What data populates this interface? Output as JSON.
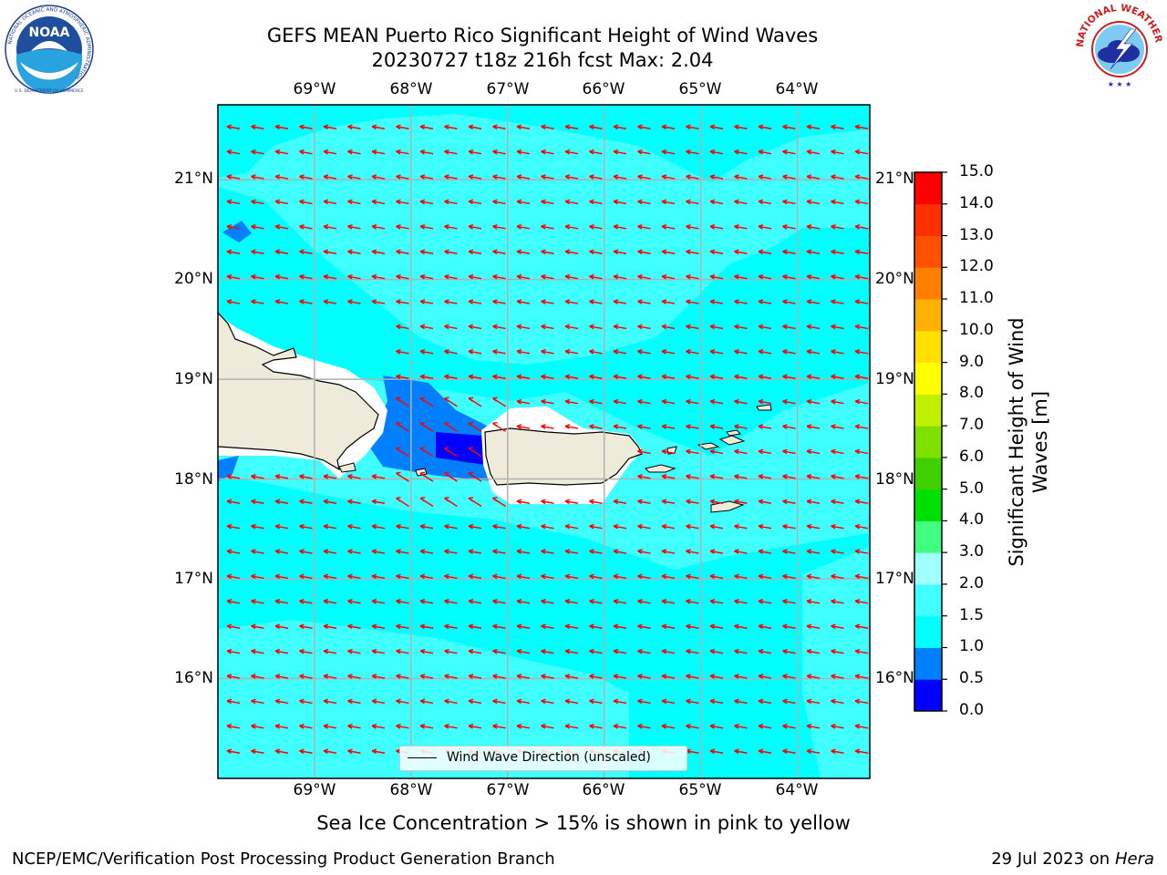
{
  "title_line1": "GEFS MEAN Puerto Rico Significant Height of Wind Waves",
  "title_line2": "20230727 t18z 216h fcst   Max: 2.04",
  "logos": {
    "noaa_icon": "noaa-logo",
    "noaa_text": "NOAA",
    "noaa_ring_text": "NATIONAL OCEANIC AND ATMOSPHERIC ADMINISTRATION",
    "noaa_ring_bottom": "U.S. DEPARTMENT OF COMMERCE",
    "nws_icon": "nws-logo",
    "nws_ring_text": "NATIONAL WEATHER SERVICE"
  },
  "map": {
    "lon_labels": [
      "69°W",
      "68°W",
      "67°W",
      "66°W",
      "65°W",
      "64°W"
    ],
    "lat_labels": [
      "21°N",
      "20°N",
      "19°N",
      "18°N",
      "17°N",
      "16°N"
    ],
    "lon_values": [
      -69,
      -68,
      -67,
      -66,
      -65,
      -64
    ],
    "lat_values": [
      21,
      20,
      19,
      18,
      17,
      16
    ],
    "lon_range": [
      -70.0,
      -63.25
    ],
    "lat_range": [
      15.0,
      21.75
    ],
    "ocean_color": "#00ffff",
    "land_color": "#eeebdb",
    "arrow_color": "#ff0000",
    "wind_direction": "from east, pointing west-northwest"
  },
  "legend": {
    "label": "Wind Wave Direction (unscaled)"
  },
  "colorbar": {
    "title": "Significant Height of Wind Waves [m]",
    "ticks": [
      "0.0",
      "0.5",
      "1.0",
      "1.5",
      "2.0",
      "3.0",
      "4.0",
      "5.0",
      "6.0",
      "7.0",
      "8.0",
      "9.0",
      "10.0",
      "11.0",
      "12.0",
      "13.0",
      "14.0",
      "15.0"
    ],
    "colors": [
      "#0000ff",
      "#0080ff",
      "#00ffff",
      "#40ffff",
      "#a0ffff",
      "#40ff80",
      "#00e000",
      "#40d000",
      "#80e000",
      "#c0f000",
      "#ffff00",
      "#ffe000",
      "#ffb000",
      "#ff8000",
      "#ff5000",
      "#ff3000",
      "#ff0000"
    ]
  },
  "sea_ice_note": "Sea Ice Concentration > 15% is shown in pink to yellow",
  "footer_left": "NCEP/EMC/Verification Post Processing Product Generation Branch",
  "footer_right_prefix": "29 Jul 2023 on ",
  "footer_right_machine": "Hera"
}
